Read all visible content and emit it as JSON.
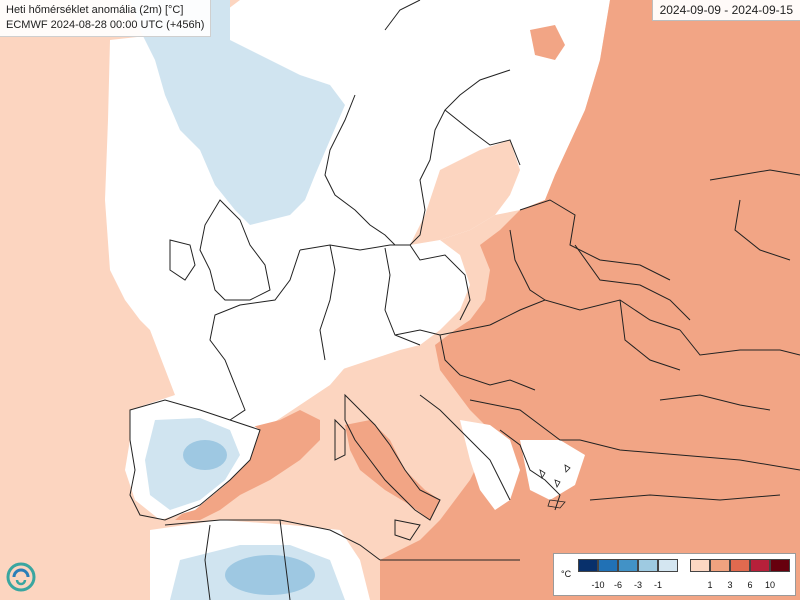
{
  "header": {
    "title": "Heti hőmérséklet anomália (2m) [°C]",
    "subtitle": "ECMWF 2024-08-28 00:00 UTC (+456h)"
  },
  "period": "2024-09-09 - 2024-09-15",
  "legend": {
    "unit": "°C",
    "cold_labels": [
      "-10",
      "-6",
      "-3",
      "-1"
    ],
    "warm_labels": [
      "1",
      "3",
      "6",
      "10"
    ],
    "colors": {
      "cold": [
        "#08306b",
        "#2171b5",
        "#4292c6",
        "#9ecae1",
        "#d4e6f1"
      ],
      "neutral": "#ffffff",
      "warm": [
        "#fcd7c3",
        "#f0a27f",
        "#e06a4f",
        "#b7203a",
        "#67000d"
      ]
    }
  },
  "map_colors": {
    "light_warm": "#fcd5c0",
    "warm": "#f2a585",
    "warm_strong": "#e9906d",
    "light_cold": "#d0e4f0",
    "cold": "#9ec8e2",
    "land_neutral": "#ffffff",
    "border": "#222222"
  },
  "logo": "ecmwf-logo-icon"
}
